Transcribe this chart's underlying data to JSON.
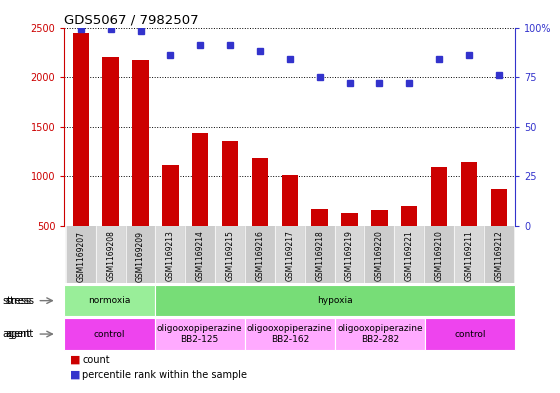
{
  "title": "GDS5067 / 7982507",
  "samples": [
    "GSM1169207",
    "GSM1169208",
    "GSM1169209",
    "GSM1169213",
    "GSM1169214",
    "GSM1169215",
    "GSM1169216",
    "GSM1169217",
    "GSM1169218",
    "GSM1169219",
    "GSM1169220",
    "GSM1169221",
    "GSM1169210",
    "GSM1169211",
    "GSM1169212"
  ],
  "counts": [
    2440,
    2200,
    2170,
    1110,
    1440,
    1360,
    1190,
    1010,
    670,
    630,
    660,
    700,
    1090,
    1140,
    870
  ],
  "percentiles": [
    99,
    99,
    98,
    86,
    91,
    91,
    88,
    84,
    75,
    72,
    72,
    72,
    84,
    86,
    76
  ],
  "bar_color": "#cc0000",
  "dot_color": "#3333cc",
  "ylim_left": [
    500,
    2500
  ],
  "ylim_right": [
    0,
    100
  ],
  "yticks_left": [
    500,
    1000,
    1500,
    2000,
    2500
  ],
  "yticks_right": [
    0,
    25,
    50,
    75,
    100
  ],
  "stress_segments": [
    {
      "text": "normoxia",
      "start": 0,
      "end": 3,
      "color": "#99ee99"
    },
    {
      "text": "hypoxia",
      "start": 3,
      "end": 15,
      "color": "#77dd77"
    }
  ],
  "agent_segments": [
    {
      "text": "control",
      "start": 0,
      "end": 3,
      "color": "#ee44ee"
    },
    {
      "text": "oligooxopiperazine\nBB2-125",
      "start": 3,
      "end": 6,
      "color": "#ffaaff"
    },
    {
      "text": "oligooxopiperazine\nBB2-162",
      "start": 6,
      "end": 9,
      "color": "#ffaaff"
    },
    {
      "text": "oligooxopiperazine\nBB2-282",
      "start": 9,
      "end": 12,
      "color": "#ffaaff"
    },
    {
      "text": "control",
      "start": 12,
      "end": 15,
      "color": "#ee44ee"
    }
  ],
  "tick_color_left": "#cc0000",
  "tick_color_right": "#3333cc",
  "bg_color": "#ffffff",
  "label_gray": "#aaaaaa",
  "tick_gray": "#888888"
}
